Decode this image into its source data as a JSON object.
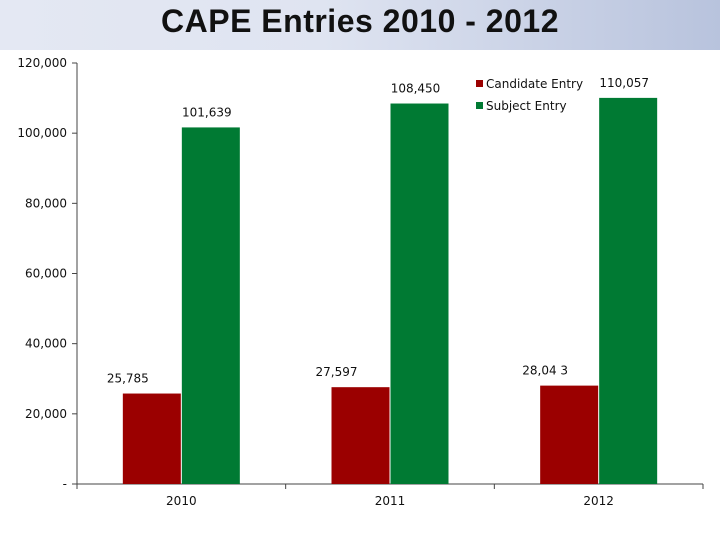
{
  "slide": {
    "title": "CAPE Entries 2010 - 2012"
  },
  "chart_data": {
    "type": "bar",
    "categories": [
      "2010",
      "2011",
      "2012"
    ],
    "series": [
      {
        "name": "Candidate Entry",
        "values": [
          25785,
          27597,
          28043
        ],
        "labels": [
          "25,785",
          "27,597",
          "28,04 3"
        ],
        "color": "#9b0000"
      },
      {
        "name": "Subject Entry",
        "values": [
          101639,
          108450,
          110057
        ],
        "labels": [
          "101,639",
          "108,450",
          "110,057"
        ],
        "color": "#007a33"
      }
    ],
    "yticks": [
      0,
      20000,
      40000,
      60000,
      80000,
      100000,
      120000
    ],
    "ytick_labels": [
      "-",
      "20,000",
      "40,000",
      "60,000",
      "80,000",
      "100,000",
      "120,000"
    ],
    "ylim": [
      0,
      120000
    ],
    "grid": false,
    "legend_position": "top-right"
  }
}
